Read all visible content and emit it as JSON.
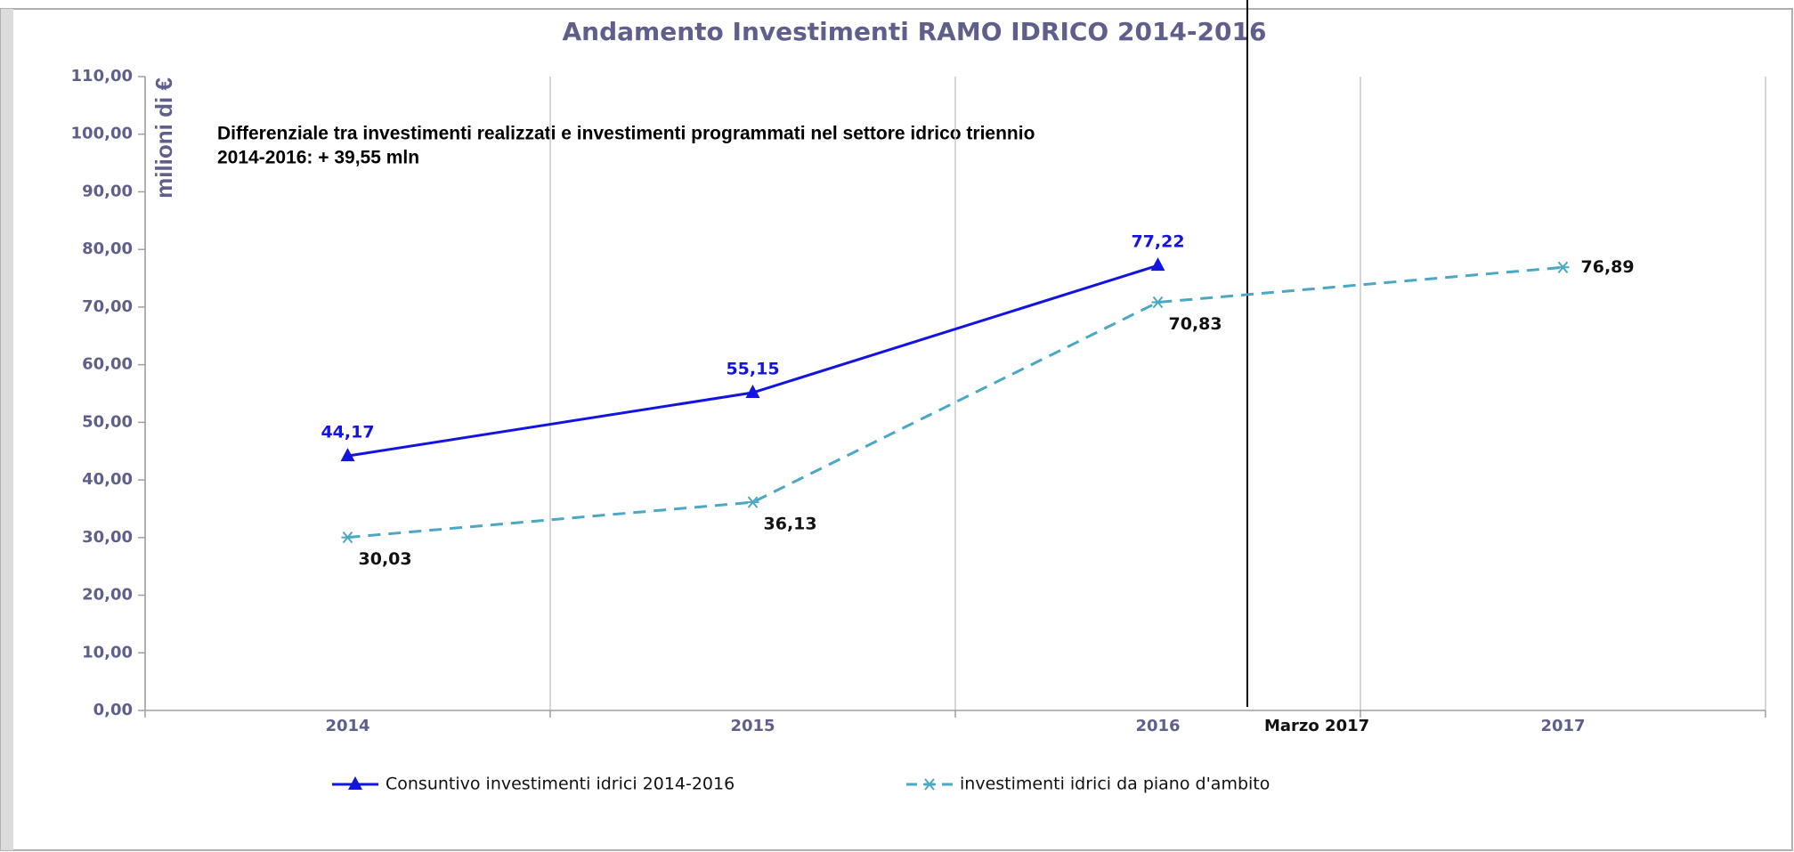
{
  "chart_data": {
    "type": "line",
    "title": "Andamento Investimenti RAMO IDRICO 2014-2016",
    "y_label": "milioni di €",
    "annotation": [
      "Differenziale tra investimenti realizzati e investimenti programmati nel settore idrico  triennio",
      "2014-2016: + 39,55 mln"
    ],
    "marker_label": "Marzo 2017",
    "categories": [
      "2014",
      "2015",
      "2016",
      "2017"
    ],
    "series": [
      {
        "name": "Consuntivo investimenti idrici 2014-2016",
        "color": "#1414e0",
        "dashed": false,
        "marker": "triangle",
        "values": [
          44.17,
          55.15,
          77.22,
          null
        ],
        "value_labels": [
          "44,17",
          "55,15",
          "77,22",
          null
        ]
      },
      {
        "name": "investimenti idrici da piano d'ambito",
        "color": "#4aa8c4",
        "dashed": true,
        "marker": "asterisk",
        "values": [
          30.03,
          36.13,
          70.83,
          76.89
        ],
        "value_labels": [
          "30,03",
          "36,13",
          "70,83",
          "76,89"
        ]
      }
    ],
    "ylim": [
      0,
      110
    ],
    "yticks": [
      {
        "value": 0,
        "label": "0,00"
      },
      {
        "value": 10,
        "label": "10,00"
      },
      {
        "value": 20,
        "label": "20,00"
      },
      {
        "value": 30,
        "label": "30,00"
      },
      {
        "value": 40,
        "label": "40,00"
      },
      {
        "value": 50,
        "label": "50,00"
      },
      {
        "value": 60,
        "label": "60,00"
      },
      {
        "value": 70,
        "label": "70,00"
      },
      {
        "value": 80,
        "label": "80,00"
      },
      {
        "value": 90,
        "label": "90,00"
      },
      {
        "value": 100,
        "label": "100,00"
      },
      {
        "value": 110,
        "label": "110,00"
      }
    ],
    "grid": "x"
  }
}
